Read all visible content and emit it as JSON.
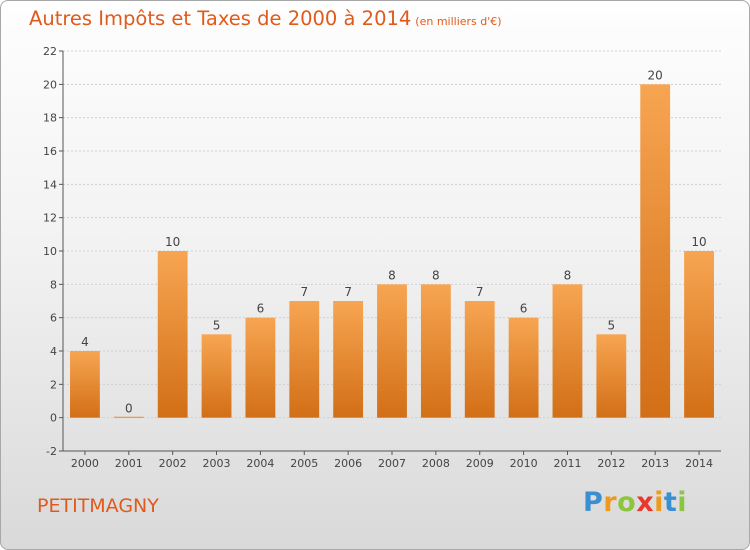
{
  "chart_data": {
    "type": "bar",
    "title": "Autres Impôts et Taxes de 2000 à 2014",
    "subtitle": "(en milliers d'€)",
    "categories": [
      "2000",
      "2001",
      "2002",
      "2003",
      "2004",
      "2005",
      "2006",
      "2007",
      "2008",
      "2009",
      "2010",
      "2011",
      "2012",
      "2013",
      "2014"
    ],
    "values": [
      4,
      0,
      10,
      5,
      6,
      7,
      7,
      8,
      8,
      7,
      6,
      8,
      5,
      20,
      10
    ],
    "ylim": [
      -2,
      22
    ],
    "yticks": [
      -2,
      0,
      2,
      4,
      6,
      8,
      10,
      12,
      14,
      16,
      18,
      20,
      22
    ],
    "grid": true,
    "data_labels": true,
    "bar_color_light": "#f7a552",
    "bar_color_dark": "#d26f16"
  },
  "commune": "PETITMAGNY",
  "logo": {
    "letters": [
      "P",
      "r",
      "o",
      "x",
      "i",
      "t",
      "i"
    ],
    "colors": [
      "#3a8fd1",
      "#f09a1c",
      "#8cc63e",
      "#e8382d",
      "#f09a1c",
      "#3a8fd1",
      "#8cc63e"
    ]
  }
}
